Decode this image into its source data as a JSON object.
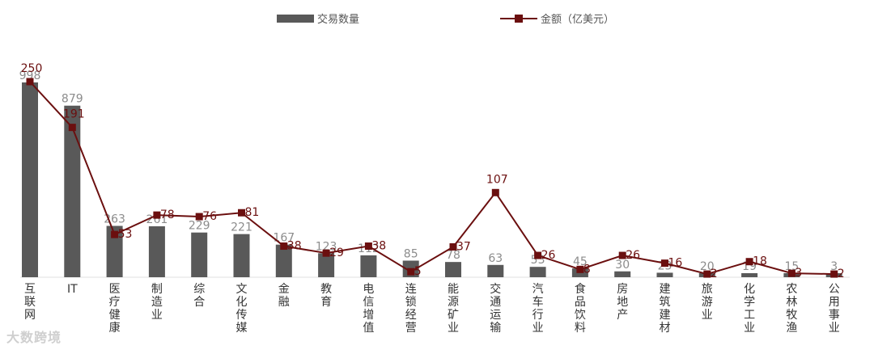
{
  "chart_data": {
    "type": "bar",
    "categories": [
      "互联网",
      "IT",
      "医疗健康",
      "制造业",
      "综合",
      "文化传媒",
      "金融",
      "教育",
      "电信增值",
      "连锁经营",
      "能源矿业",
      "交通运输",
      "汽车行业",
      "食品饮料",
      "房地产",
      "建筑建材",
      "旅游业",
      "化学工业",
      "农林牧渔",
      "公用事业"
    ],
    "series": [
      {
        "name": "交易数量",
        "type": "bar",
        "values": [
          998,
          879,
          263,
          261,
          229,
          221,
          167,
          123,
          112,
          85,
          78,
          63,
          53,
          45,
          30,
          23,
          20,
          19,
          15,
          3
        ]
      },
      {
        "name": "金额（亿美元）",
        "type": "line",
        "values": [
          250,
          191,
          53,
          78,
          76,
          81,
          38,
          29,
          38,
          5,
          37,
          107,
          26,
          8,
          26,
          16,
          2,
          18,
          3,
          2
        ]
      }
    ],
    "legend_position": "top",
    "grid": false,
    "colors": {
      "bar": "#595959",
      "line": "#6b0f0f",
      "bar_label": "#8c8c8c",
      "line_label": "#6b0f0f"
    }
  },
  "watermark": "大数跨境"
}
